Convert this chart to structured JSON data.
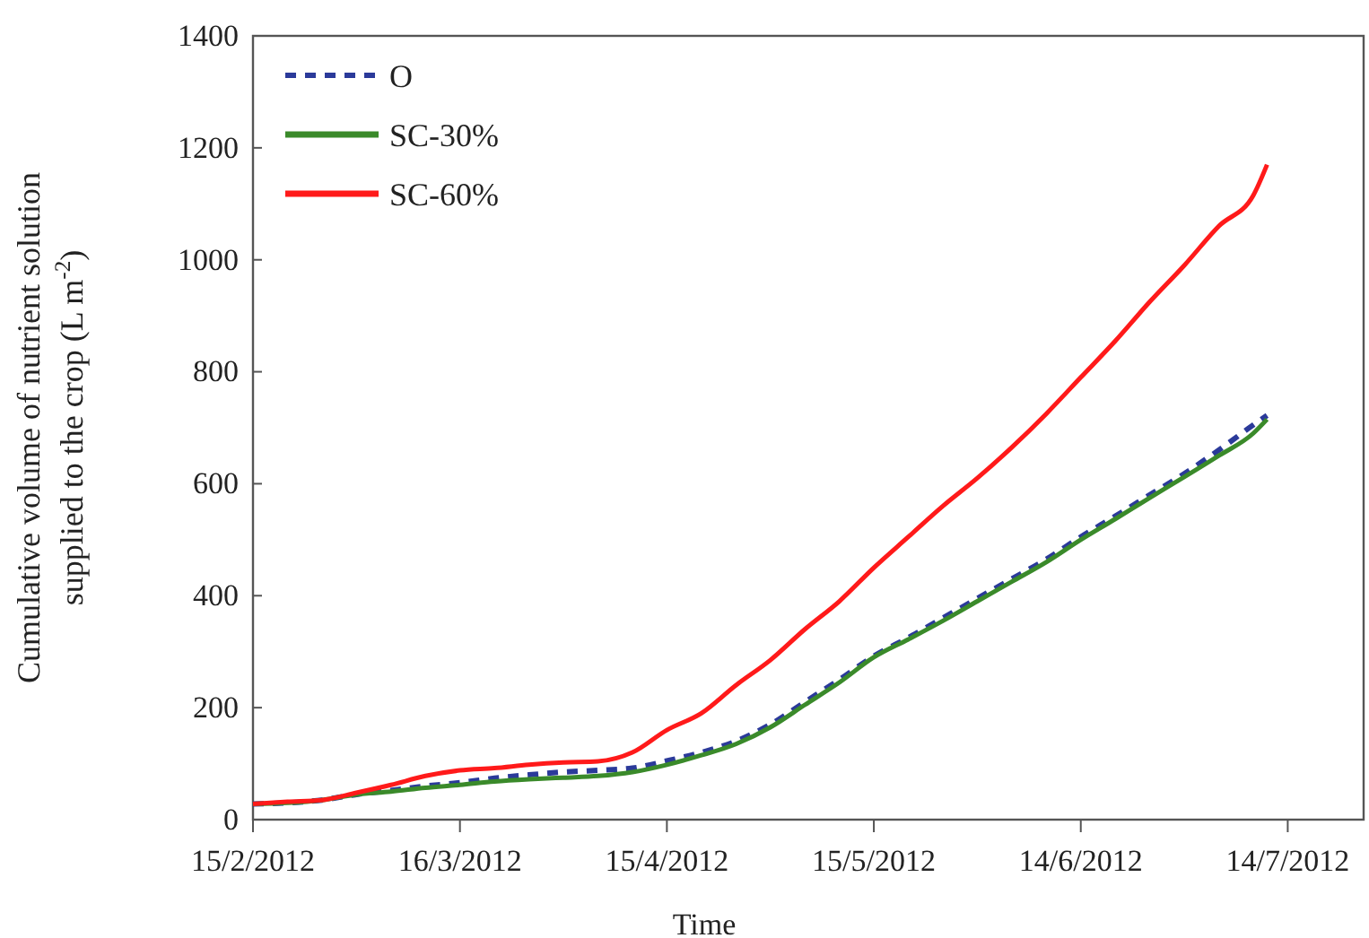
{
  "chart_data": {
    "type": "line",
    "xlabel": "Time",
    "ylabel": "Cumulative volume of nutrient solution\nsupplied to the crop (L m$^{-2}$)",
    "x": [
      "2012-02-15",
      "2012-02-20",
      "2012-02-25",
      "2012-03-01",
      "2012-03-06",
      "2012-03-11",
      "2012-03-16",
      "2012-03-21",
      "2012-03-26",
      "2012-03-31",
      "2012-04-05",
      "2012-04-10",
      "2012-04-15",
      "2012-04-20",
      "2012-04-25",
      "2012-04-30",
      "2012-05-05",
      "2012-05-10",
      "2012-05-15",
      "2012-05-20",
      "2012-05-25",
      "2012-05-30",
      "2012-06-04",
      "2012-06-09",
      "2012-06-14",
      "2012-06-19",
      "2012-06-24",
      "2012-06-29",
      "2012-07-04",
      "2012-07-09",
      "2012-07-11"
    ],
    "series": [
      {
        "name": "O",
        "color": "#2b3a9a",
        "line_style": "dashed",
        "values": [
          28,
          30,
          35,
          45,
          52,
          60,
          66,
          74,
          80,
          85,
          88,
          92,
          105,
          120,
          140,
          170,
          210,
          250,
          292,
          325,
          360,
          395,
          430,
          465,
          505,
          542,
          580,
          618,
          660,
          705,
          722
        ]
      },
      {
        "name": "SC-30%",
        "color": "#3a8a2a",
        "line_style": "solid",
        "values": [
          28,
          30,
          35,
          45,
          50,
          57,
          62,
          68,
          72,
          75,
          78,
          85,
          98,
          115,
          135,
          165,
          205,
          245,
          290,
          322,
          355,
          390,
          425,
          460,
          500,
          537,
          575,
          612,
          650,
          690,
          715
        ]
      },
      {
        "name": "SC-60%",
        "color": "#ff1a1a",
        "line_style": "solid",
        "values": [
          28,
          32,
          35,
          48,
          62,
          78,
          88,
          92,
          98,
          102,
          104,
          120,
          160,
          190,
          240,
          285,
          340,
          390,
          450,
          505,
          560,
          610,
          665,
          725,
          790,
          855,
          925,
          990,
          1060,
          1115,
          1170
        ]
      }
    ],
    "xlim": [
      "2012-02-15",
      "2012-07-25"
    ],
    "xticks": [
      {
        "value": "2012-02-15",
        "label": "15/2/2012"
      },
      {
        "value": "2012-03-16",
        "label": "16/3/2012"
      },
      {
        "value": "2012-04-15",
        "label": "15/4/2012"
      },
      {
        "value": "2012-05-15",
        "label": "15/5/2012"
      },
      {
        "value": "2012-06-14",
        "label": "14/6/2012"
      },
      {
        "value": "2012-07-14",
        "label": "14/7/2012"
      }
    ],
    "ylim": [
      0,
      1400
    ],
    "yticks": [
      0,
      200,
      400,
      600,
      800,
      1000,
      1200,
      1400
    ],
    "legend": "top left",
    "grid": false,
    "marker": "none"
  }
}
